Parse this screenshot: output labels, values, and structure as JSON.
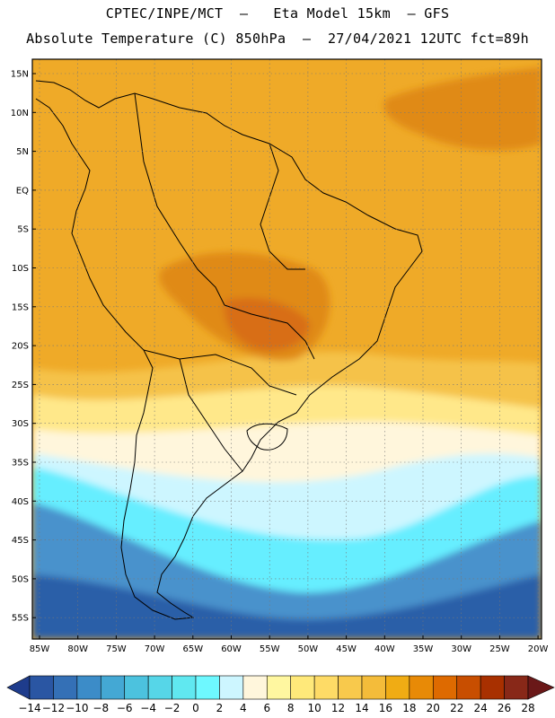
{
  "header": {
    "line1": "CPTEC/INPE/MCT  –   Eta Model 15km  – GFS",
    "line2": "Absolute Temperature (C) 850hPa  –  27/04/2021 12UTC fct=89h"
  },
  "axes": {
    "lat_labels": [
      "15N",
      "10N",
      "5N",
      "EQ",
      "5S",
      "10S",
      "15S",
      "20S",
      "25S",
      "30S",
      "35S",
      "40S",
      "45S",
      "50S",
      "55S"
    ],
    "lon_labels": [
      "85W",
      "80W",
      "75W",
      "70W",
      "65W",
      "60W",
      "55W",
      "50W",
      "45W",
      "40W",
      "35W",
      "30W",
      "25W",
      "20W"
    ]
  },
  "colorbar": {
    "labels": [
      "-14",
      "-12",
      "-10",
      "-8",
      "-6",
      "-4",
      "-2",
      "0",
      "2",
      "4",
      "6",
      "8",
      "10",
      "12",
      "14",
      "16",
      "18",
      "20",
      "22",
      "24",
      "26",
      "28"
    ],
    "colors": [
      "#1e3c8c",
      "#2a56a3",
      "#3470b6",
      "#3c8cc8",
      "#44a8d4",
      "#4cc2de",
      "#56d6e8",
      "#60e8f0",
      "#6ef8ff",
      "#cdf6ff",
      "#fff6dc",
      "#fff7a0",
      "#ffe97a",
      "#fedb66",
      "#f8c94c",
      "#f4bc3a",
      "#f0ac14",
      "#e88a06",
      "#de6a00",
      "#c84e00",
      "#a83000",
      "#882818",
      "#6a1818"
    ]
  },
  "colors": {
    "ocean_far_south": "#2a5ea8",
    "ocean_cold": "#4a92cc",
    "ocean_cyan": "#66eeff",
    "ocean_pale": "#cdf6ff",
    "ocean_cream": "#fff6dc",
    "ocean_yellow": "#ffe88a",
    "ocean_gold": "#f5c24a",
    "warm_orange": "#efaa28",
    "hot_orange": "#e08a14",
    "very_hot": "#d86e14",
    "border_line": "#000000"
  }
}
